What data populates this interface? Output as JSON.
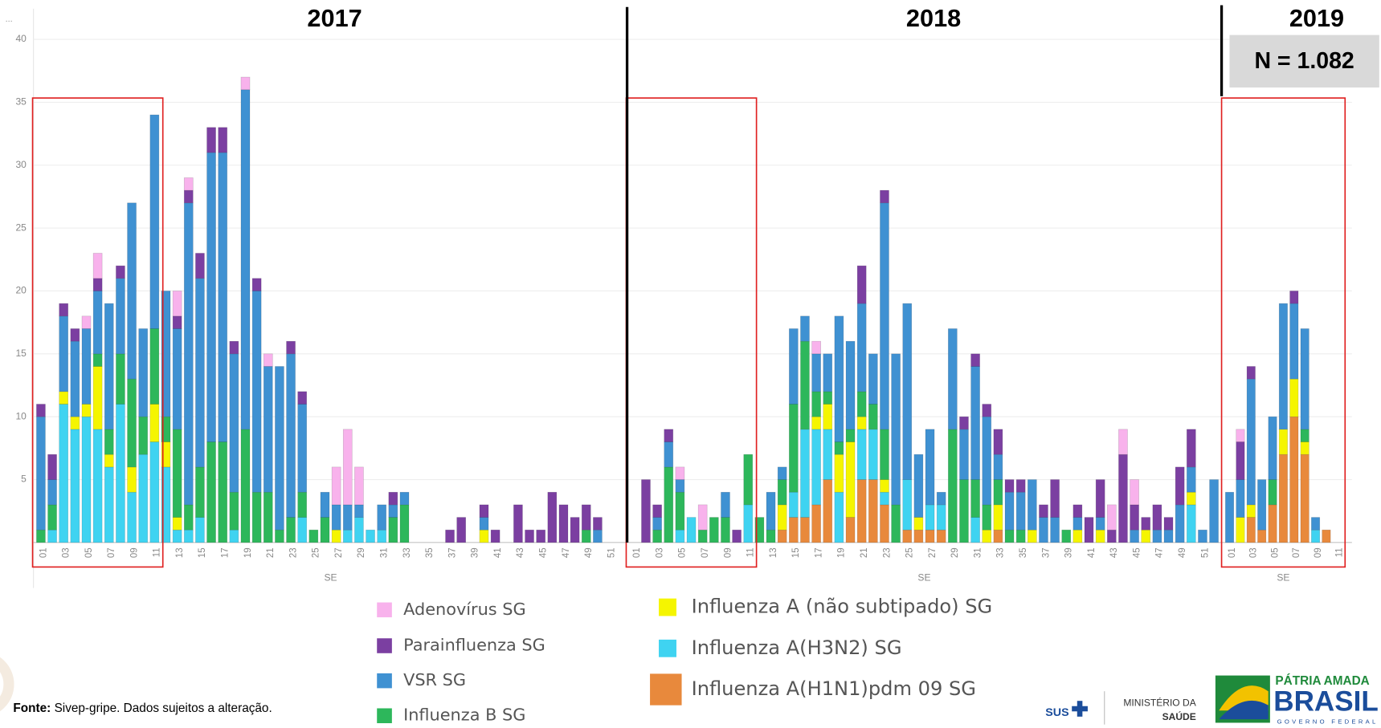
{
  "chart_data": {
    "type": "bar",
    "stacked": true,
    "ylim": [
      0,
      40
    ],
    "yticks": [
      5,
      10,
      15,
      20,
      25,
      30,
      35,
      40
    ],
    "grid": true,
    "annotation": "N = 1.082",
    "panels": [
      {
        "title": "2017",
        "xlabel": "SE",
        "categories": [
          "01",
          null,
          "03",
          null,
          "05",
          null,
          "07",
          null,
          "09",
          null,
          "11",
          null,
          "13",
          null,
          "15",
          null,
          "17",
          null,
          "19",
          null,
          "21",
          null,
          "23",
          null,
          "25",
          null,
          "27",
          null,
          "29",
          null,
          "31",
          null,
          "33",
          null,
          "35",
          null,
          "37",
          null,
          "39",
          null,
          "41",
          null,
          "43",
          null,
          "45",
          null,
          "47",
          null,
          "49",
          null,
          "51",
          null
        ]
      },
      {
        "title": "2018",
        "xlabel": "SE",
        "categories": [
          "01",
          null,
          "03",
          null,
          "05",
          null,
          "07",
          null,
          "09",
          null,
          "11",
          null,
          "13",
          null,
          "15",
          null,
          "17",
          null,
          "19",
          null,
          "21",
          null,
          "23",
          null,
          "25",
          null,
          "27",
          null,
          "29",
          null,
          "31",
          null,
          "33",
          null,
          "35",
          null,
          "37",
          null,
          "39",
          null,
          "41",
          null,
          "43",
          null,
          "45",
          null,
          "47",
          null,
          "49",
          null,
          "51",
          null
        ]
      },
      {
        "title": "2019",
        "xlabel": "SE",
        "categories": [
          "01",
          null,
          "03",
          null,
          "05",
          null,
          "07",
          null,
          "09",
          null,
          "11"
        ]
      }
    ],
    "series": [
      {
        "name": "Influenza A(H1N1)pdm 09 SG",
        "color": "#e8893c",
        "values": [
          [
            0,
            0,
            0,
            0,
            0,
            0,
            0,
            0,
            0,
            0,
            0,
            0,
            0,
            0,
            0,
            0,
            0,
            0,
            0,
            0,
            0,
            0,
            0,
            0,
            0,
            0,
            0,
            0,
            0,
            0,
            0,
            0,
            0,
            0,
            0,
            0,
            0,
            0,
            0,
            0,
            0,
            0,
            0,
            0,
            0,
            0,
            0,
            0,
            0,
            0,
            0,
            0
          ],
          [
            0,
            0,
            0,
            0,
            0,
            0,
            0,
            0,
            0,
            0,
            0,
            0,
            0,
            1,
            2,
            2,
            3,
            5,
            0,
            2,
            5,
            5,
            3,
            0,
            1,
            1,
            1,
            1,
            0,
            0,
            0,
            0,
            1,
            0,
            0,
            0,
            0,
            0,
            0,
            0,
            0,
            0,
            0,
            0,
            0,
            0,
            0,
            0,
            0,
            0,
            0,
            0
          ],
          [
            0,
            0,
            2,
            1,
            3,
            7,
            10,
            7,
            0,
            1,
            0
          ]
        ]
      },
      {
        "name": "Influenza A(H3N2) SG",
        "color": "#3fd3f1",
        "values": [
          [
            0,
            1,
            11,
            9,
            10,
            9,
            6,
            11,
            4,
            7,
            8,
            6,
            1,
            1,
            2,
            0,
            0,
            1,
            0,
            0,
            0,
            0,
            0,
            2,
            0,
            0,
            0,
            1,
            2,
            1,
            1,
            0,
            0,
            0,
            0,
            0,
            0,
            0,
            0,
            0,
            0,
            0,
            0,
            0,
            0,
            0,
            0,
            0,
            0,
            0,
            0,
            0
          ],
          [
            0,
            0,
            0,
            0,
            1,
            2,
            0,
            0,
            0,
            0,
            3,
            0,
            0,
            0,
            2,
            7,
            6,
            4,
            4,
            0,
            4,
            4,
            1,
            0,
            4,
            0,
            2,
            2,
            0,
            0,
            2,
            0,
            0,
            0,
            0,
            0,
            0,
            0,
            0,
            0,
            0,
            0,
            0,
            0,
            0,
            0,
            0,
            0,
            0,
            3,
            0,
            0
          ],
          [
            0,
            0,
            0,
            0,
            0,
            0,
            0,
            0,
            1,
            0,
            0
          ]
        ]
      },
      {
        "name": "Influenza A (não subtipado) SG",
        "color": "#f5f500",
        "values": [
          [
            0,
            0,
            1,
            1,
            1,
            5,
            1,
            0,
            2,
            0,
            3,
            2,
            1,
            0,
            0,
            0,
            0,
            0,
            0,
            0,
            0,
            0,
            0,
            0,
            0,
            0,
            1,
            0,
            0,
            0,
            0,
            0,
            0,
            0,
            0,
            0,
            0,
            0,
            0,
            1,
            0,
            0,
            0,
            0,
            0,
            0,
            0,
            0,
            0,
            0,
            0,
            0
          ],
          [
            0,
            0,
            0,
            0,
            0,
            0,
            0,
            0,
            0,
            0,
            0,
            0,
            0,
            2,
            0,
            0,
            1,
            2,
            3,
            6,
            1,
            0,
            1,
            0,
            0,
            1,
            0,
            0,
            0,
            0,
            0,
            1,
            2,
            0,
            0,
            1,
            0,
            0,
            0,
            1,
            0,
            1,
            0,
            0,
            0,
            1,
            0,
            0,
            0,
            1,
            0,
            0
          ],
          [
            0,
            2,
            1,
            0,
            0,
            2,
            3,
            1,
            0,
            0,
            0
          ]
        ]
      },
      {
        "name": "Influenza B SG",
        "color": "#2db75b",
        "values": [
          [
            1,
            2,
            0,
            0,
            0,
            1,
            2,
            4,
            7,
            3,
            6,
            2,
            7,
            2,
            4,
            8,
            8,
            3,
            9,
            4,
            4,
            1,
            2,
            2,
            1,
            2,
            0,
            0,
            0,
            0,
            0,
            2,
            3,
            0,
            0,
            0,
            0,
            0,
            0,
            0,
            0,
            0,
            0,
            0,
            0,
            0,
            0,
            0,
            1,
            0,
            0,
            0
          ],
          [
            0,
            0,
            1,
            6,
            3,
            0,
            1,
            2,
            2,
            0,
            4,
            2,
            1,
            2,
            7,
            7,
            2,
            1,
            1,
            1,
            2,
            2,
            4,
            3,
            0,
            0,
            0,
            0,
            9,
            5,
            3,
            2,
            2,
            1,
            1,
            0,
            0,
            0,
            1,
            0,
            0,
            0,
            0,
            0,
            0,
            0,
            0,
            0,
            0,
            0,
            0,
            0
          ],
          [
            0,
            0,
            0,
            0,
            2,
            0,
            0,
            1,
            0,
            0,
            0
          ]
        ]
      },
      {
        "name": "VSR SG",
        "color": "#3f91d2",
        "values": [
          [
            9,
            2,
            6,
            6,
            6,
            5,
            10,
            6,
            14,
            7,
            17,
            10,
            8,
            24,
            15,
            23,
            23,
            11,
            27,
            16,
            10,
            13,
            13,
            7,
            0,
            2,
            2,
            2,
            1,
            0,
            2,
            1,
            1,
            0,
            0,
            0,
            0,
            0,
            0,
            1,
            0,
            0,
            0,
            0,
            0,
            0,
            0,
            0,
            0,
            1,
            0,
            0
          ],
          [
            0,
            0,
            1,
            2,
            1,
            0,
            0,
            0,
            2,
            0,
            0,
            0,
            3,
            1,
            6,
            2,
            3,
            3,
            10,
            7,
            7,
            4,
            18,
            12,
            14,
            5,
            6,
            1,
            8,
            4,
            9,
            7,
            2,
            3,
            3,
            4,
            2,
            2,
            0,
            1,
            0,
            1,
            0,
            0,
            1,
            0,
            1,
            1,
            3,
            2,
            1,
            5
          ],
          [
            4,
            3,
            10,
            4,
            5,
            10,
            6,
            8,
            1,
            0,
            0
          ]
        ]
      },
      {
        "name": "Parainfluenza SG",
        "color": "#7b3fa1",
        "values": [
          [
            1,
            2,
            1,
            1,
            0,
            1,
            0,
            1,
            0,
            0,
            0,
            0,
            1,
            1,
            2,
            2,
            2,
            1,
            0,
            1,
            0,
            0,
            1,
            1,
            0,
            0,
            0,
            0,
            0,
            0,
            0,
            1,
            0,
            0,
            0,
            0,
            1,
            2,
            0,
            1,
            1,
            0,
            3,
            1,
            1,
            4,
            3,
            2,
            2,
            1,
            0,
            0
          ],
          [
            0,
            5,
            1,
            1,
            0,
            0,
            0,
            0,
            0,
            1,
            0,
            0,
            0,
            0,
            0,
            0,
            0,
            0,
            0,
            0,
            3,
            0,
            1,
            0,
            0,
            0,
            0,
            0,
            0,
            1,
            1,
            1,
            2,
            1,
            1,
            0,
            1,
            3,
            0,
            1,
            2,
            3,
            1,
            7,
            2,
            1,
            2,
            1,
            3,
            3,
            0,
            0
          ],
          [
            0,
            3,
            1,
            0,
            0,
            0,
            1,
            0,
            0,
            0,
            0
          ]
        ]
      },
      {
        "name": "Adenovírus SG",
        "color": "#f8b2ec",
        "values": [
          [
            0,
            0,
            0,
            0,
            1,
            2,
            0,
            0,
            0,
            0,
            0,
            0,
            2,
            1,
            0,
            0,
            0,
            0,
            1,
            0,
            1,
            0,
            0,
            0,
            0,
            0,
            3,
            6,
            3,
            0,
            0,
            0,
            0,
            0,
            0,
            0,
            0,
            0,
            0,
            0,
            0,
            0,
            0,
            0,
            0,
            0,
            0,
            0,
            0,
            0,
            0,
            0
          ],
          [
            0,
            0,
            0,
            0,
            1,
            0,
            2,
            0,
            0,
            0,
            0,
            0,
            0,
            0,
            0,
            0,
            1,
            0,
            0,
            0,
            0,
            0,
            0,
            0,
            0,
            0,
            0,
            0,
            0,
            0,
            0,
            0,
            0,
            0,
            0,
            0,
            0,
            0,
            0,
            0,
            0,
            0,
            2,
            2,
            2,
            0,
            0,
            0,
            0,
            0,
            0,
            0
          ],
          [
            0,
            1,
            0,
            0,
            0,
            0,
            0,
            0,
            0,
            0,
            0
          ]
        ]
      }
    ]
  },
  "corner": "...",
  "footer": {
    "label": "Fonte:",
    "text": " Sivep-gripe. Dados sujeitos a alteração."
  },
  "logos": {
    "sus": "SUS",
    "ministry": [
      "MINISTÉRIO DA",
      "SAÚDE"
    ],
    "brand": [
      "PÁTRIA AMADA",
      "BRASIL",
      "GOVERNO FEDERAL"
    ]
  }
}
